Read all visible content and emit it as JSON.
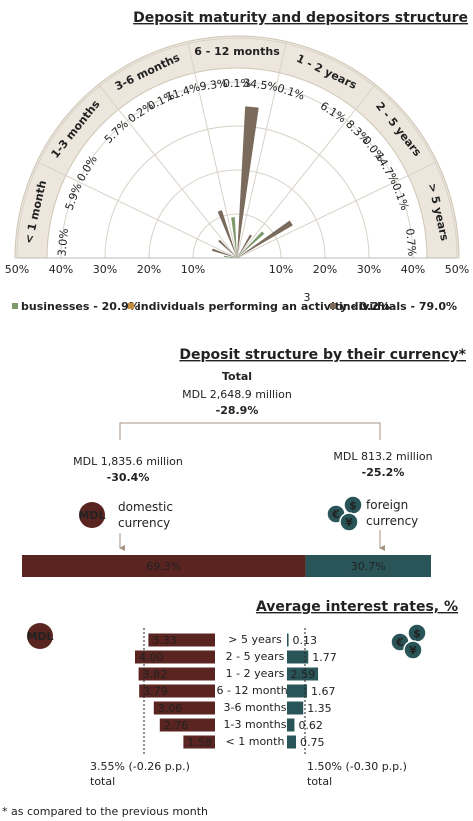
{
  "badges": {
    "domestic": "MDL",
    "foreign": [
      "€",
      "$",
      "¥"
    ]
  },
  "footnote": "* as compared to the previous month",
  "chart_data": [
    {
      "type": "rose",
      "title": "Deposit maturity and depositors structure",
      "categories": [
        "< 1 month",
        "1-3 months",
        "3-6 months",
        "6 - 12 months",
        "1 - 2 years",
        "2 - 5 years",
        "> 5 years"
      ],
      "series": [
        {
          "name": "businesses - 20.9%",
          "color": "#7d9a6b",
          "values": [
            3.0,
            0.0,
            0.2,
            9.3,
            0.1,
            8.3,
            0.1
          ],
          "value_labels": [
            "3.0%",
            "0.0%",
            "0.2%",
            "9.3%",
            "0.1%",
            "8.3%",
            "0.1%"
          ]
        },
        {
          "name": "individuals performing an activity - 0.2%",
          "footnote_ref": "3",
          "color": "#c98d3e",
          "values": [
            null,
            null,
            0.1,
            0.1,
            null,
            0.0,
            null
          ],
          "value_labels": [
            null,
            null,
            "0.1%",
            "0.1%",
            null,
            "0.0%",
            null
          ]
        },
        {
          "name": "individuals - 79.0%",
          "color": "#7a6b5d",
          "values": [
            5.9,
            5.7,
            11.4,
            34.5,
            6.1,
            14.7,
            0.7
          ],
          "value_labels": [
            "5.9%",
            "5.7%",
            "11.4%",
            "34.5%",
            "6.1%",
            "14.7%",
            "0.7%"
          ]
        }
      ],
      "rlim": [
        0,
        50
      ],
      "rticks": [
        {
          "value": 10,
          "label": "10%"
        },
        {
          "value": 20,
          "label": "20%"
        },
        {
          "value": 30,
          "label": "30%"
        },
        {
          "value": 40,
          "label": "40%"
        },
        {
          "value": 50,
          "label": "50%"
        }
      ],
      "grid": true
    },
    {
      "type": "split-bar",
      "title": "Deposit structure by their currency*",
      "total": {
        "caption": "Total",
        "amount": "MDL 2,648.9 million",
        "change": "-28.9%"
      },
      "series": [
        {
          "name": "domestic currency",
          "color": "#5a2420",
          "values": [
            69.3
          ],
          "value_labels": [
            "69.3%"
          ],
          "amount": "MDL 1,835.6 million",
          "change": "-30.4%"
        },
        {
          "name": "foreign currency",
          "color": "#2a5558",
          "values": [
            30.7
          ],
          "value_labels": [
            "30.7%"
          ],
          "amount": "MDL 813.2 million",
          "change": "-25.2%"
        }
      ],
      "xlim": [
        0,
        100
      ]
    },
    {
      "type": "diverging-bar",
      "title": "Average interest rates, %",
      "categories": [
        "> 5 years",
        "2 - 5 years",
        "1 - 2 years",
        "6 - 12 months",
        "3-6 months",
        "1-3 months",
        "< 1 month"
      ],
      "series": [
        {
          "color": "#5a2420",
          "values": [
            3.33,
            4.0,
            3.82,
            3.79,
            3.06,
            2.76,
            1.58
          ],
          "value_labels": [
            "3.33",
            "4.00",
            "3.82",
            "3.79",
            "3.06",
            "2.76",
            "1.58"
          ],
          "xlim": [
            0,
            5
          ],
          "total": 3.55,
          "total_label": "3.55% (-0.26 p.p.)",
          "total_caption": "total"
        },
        {
          "color": "#2a5558",
          "values": [
            0.13,
            1.77,
            2.59,
            1.67,
            1.35,
            0.62,
            0.75
          ],
          "value_labels": [
            "0.13",
            "1.77",
            "2.59",
            "1.67",
            "1.35",
            "0.62",
            "0.75"
          ],
          "xlim": [
            0,
            5
          ],
          "total": 1.5,
          "total_label": "1.50% (-0.30 p.p.)",
          "total_caption": "total"
        }
      ]
    }
  ]
}
